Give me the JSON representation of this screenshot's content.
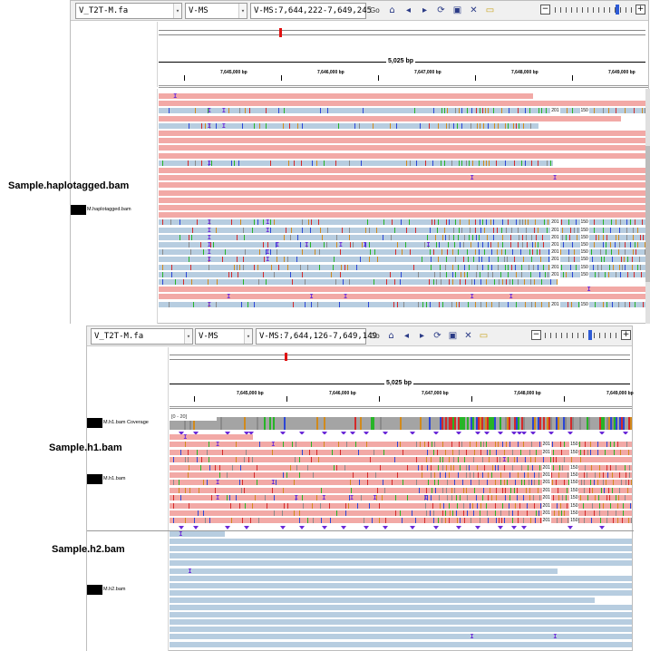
{
  "top": {
    "toolbar": {
      "genome": "V_T2T-M.fa",
      "chromosome": "V-MS",
      "locus": "V-MS:7,644,222-7,649,245",
      "go_label": "Go"
    },
    "scale_label": "5,025 bp",
    "ticks": [
      "7,645,000 bp",
      "7,646,000 bp",
      "7,647,000 bp",
      "7,648,000 bp",
      "7,649,000 bp"
    ],
    "sample_label": "Sample.haplotagged.bam",
    "track_label": "M.haplotagged.bam"
  },
  "bottom": {
    "toolbar": {
      "genome": "V_T2T-M.fa",
      "chromosome": "V-MS",
      "locus": "V-MS:7,644,126-7,649,149",
      "go_label": "Go"
    },
    "scale_label": "5,025 bp",
    "ticks": [
      "7,645,000 bp",
      "7,646,000 bp",
      "7,647,000 bp",
      "7,648,000 bp",
      "7,649,000 bp"
    ],
    "coverage_label": "M.h1.bam Coverage",
    "coverage_range": "[0 - 20]",
    "sample_h1_label": "Sample.h1.bam",
    "track_h1_label": "M.h1.bam",
    "sample_h2_label": "Sample.h2.bam",
    "track_h2_label": "M.h2.bam"
  },
  "deletion_labels": [
    "201",
    "150"
  ],
  "colors": {
    "haplotype1": "#f2a9a6",
    "haplotype2": "#b7cde0",
    "insertion": "#6b2ad8",
    "coverage": "#a4a4a4",
    "mismatch_A": "#27b427",
    "mismatch_C": "#2b46d6",
    "mismatch_G": "#d18a1c",
    "mismatch_T": "#d42a2a"
  },
  "icons": [
    "home-icon",
    "back-icon",
    "forward-icon",
    "refresh-icon",
    "fit-icon",
    "close-icon",
    "popup-icon"
  ]
}
